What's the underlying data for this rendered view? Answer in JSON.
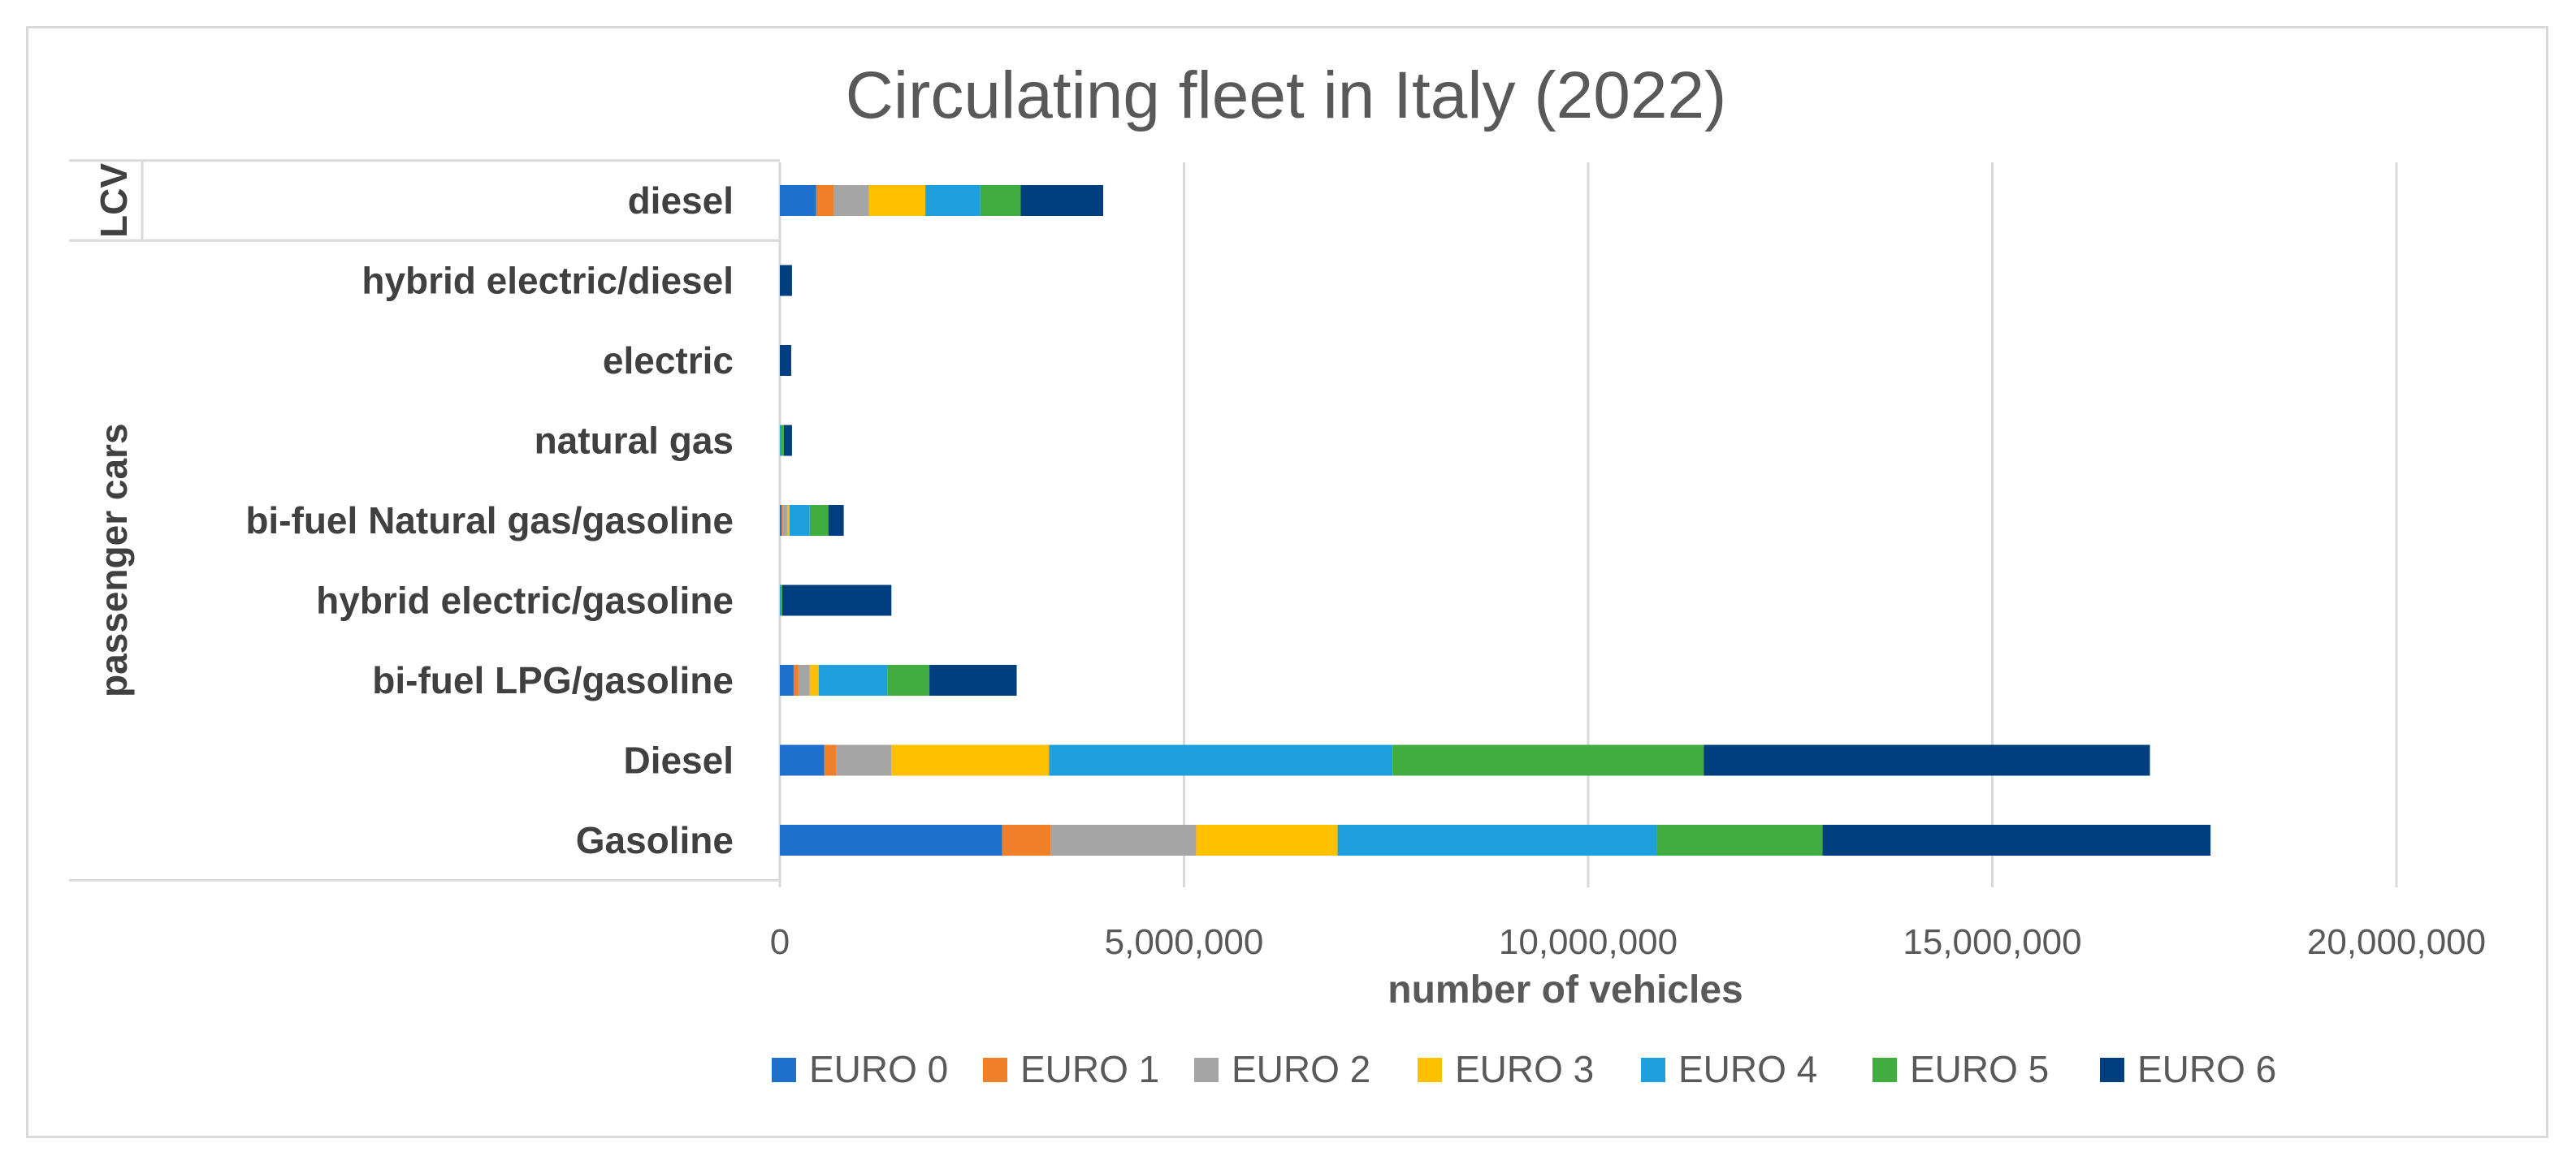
{
  "chart_data": {
    "type": "bar",
    "orientation": "horizontal",
    "stacked": true,
    "title": "Circulating fleet in Italy (2022)",
    "xlabel": "number of vehicles",
    "ylabel": "",
    "xlim": [
      0,
      20000000
    ],
    "x_ticks": [
      0,
      5000000,
      10000000,
      15000000,
      20000000
    ],
    "x_tick_labels": [
      "0",
      "5,000,000",
      "10,000,000",
      "15,000,000",
      "20,000,000"
    ],
    "grid": "vertical",
    "legend_position": "bottom",
    "groups": [
      {
        "label": "LCV",
        "categories": [
          "diesel"
        ]
      },
      {
        "label": "passenger cars",
        "categories": [
          "hybrid electric/diesel",
          "electric",
          "natural gas",
          "bi-fuel Natural gas/gasoline",
          "hybrid electric/gasoline",
          "bi-fuel LPG/gasoline",
          "Diesel",
          "Gasoline"
        ]
      }
    ],
    "categories": [
      "diesel",
      "hybrid electric/diesel",
      "electric",
      "natural gas",
      "bi-fuel Natural gas/gasoline",
      "hybrid electric/gasoline",
      "bi-fuel LPG/gasoline",
      "Diesel",
      "Gasoline"
    ],
    "series": [
      {
        "name": "EURO 0",
        "color": "#1f6fcc",
        "values": [
          450000,
          0,
          0,
          0,
          20000,
          0,
          170000,
          550000,
          2750000
        ]
      },
      {
        "name": "EURO 1",
        "color": "#f07f2a",
        "values": [
          220000,
          0,
          0,
          0,
          10000,
          0,
          60000,
          150000,
          600000
        ]
      },
      {
        "name": "EURO 2",
        "color": "#a5a5a5",
        "values": [
          430000,
          0,
          0,
          0,
          60000,
          0,
          140000,
          680000,
          1800000
        ]
      },
      {
        "name": "EURO 3",
        "color": "#ffc000",
        "values": [
          700000,
          0,
          0,
          0,
          30000,
          0,
          110000,
          1950000,
          1750000
        ]
      },
      {
        "name": "EURO 4",
        "color": "#1f9fdc",
        "values": [
          680000,
          0,
          0,
          20000,
          250000,
          10000,
          850000,
          4250000,
          3950000
        ]
      },
      {
        "name": "EURO 5",
        "color": "#41ad41",
        "values": [
          500000,
          0,
          0,
          30000,
          230000,
          20000,
          520000,
          3850000,
          2050000
        ]
      },
      {
        "name": "EURO 6",
        "color": "#003f7f",
        "values": [
          1020000,
          150000,
          140000,
          100000,
          190000,
          1350000,
          1080000,
          5520000,
          4800000
        ]
      }
    ]
  }
}
